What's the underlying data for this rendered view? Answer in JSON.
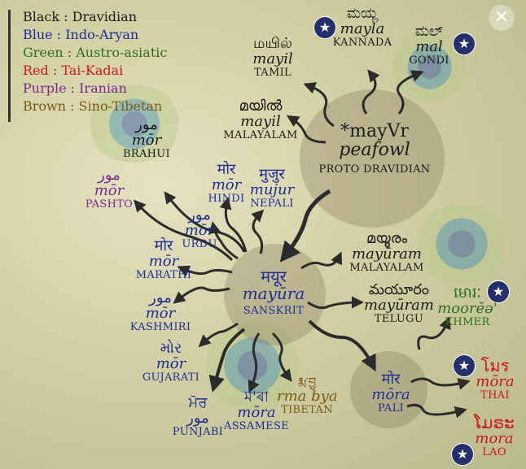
{
  "legend": [
    {
      "text": "Black : Dravidian",
      "color": "#1a1a1a"
    },
    {
      "text": "Blue : Indo-Aryan",
      "color": "#1f2e96"
    },
    {
      "text": "Green : Austro-asiatic",
      "color": "#2b6f1e"
    },
    {
      "text": "Red : Tai-Kadai",
      "color": "#d0151b"
    },
    {
      "text": "Purple : Iranian",
      "color": "#7a2a8f"
    },
    {
      "text": "Brown : Sino-Tibetan",
      "color": "#7a5a16"
    }
  ],
  "proto": {
    "form": "*mayVr",
    "gloss": "peafowl",
    "label": "PROTO DRAVIDIAN"
  },
  "nodes": [
    {
      "id": "kannada",
      "script": "ಮಯ್ಲ",
      "roman": "mayla",
      "lang": "KANNADA",
      "family": "drav"
    },
    {
      "id": "gondi",
      "script": "ಮಲ್",
      "roman": "mal",
      "lang": "GONDI",
      "family": "drav"
    },
    {
      "id": "tamil",
      "script": "மயில்",
      "roman": "mayil",
      "lang": "TAMIL",
      "family": "drav"
    },
    {
      "id": "malayalam1",
      "script": "മയിൽ",
      "roman": "mayil",
      "lang": "MALAYALAM",
      "family": "drav"
    },
    {
      "id": "brahui",
      "script": "مور",
      "roman": "mōr",
      "lang": "BRAHUI",
      "family": "drav"
    },
    {
      "id": "pashto",
      "script": "مور",
      "roman": "mōr",
      "lang": "PASHTO",
      "family": "iran"
    },
    {
      "id": "hindi",
      "script": "मोर",
      "roman": "mōr",
      "lang": "HINDI",
      "family": "indo"
    },
    {
      "id": "nepali",
      "script": "मुजुर",
      "roman": "mujur",
      "lang": "NEPALI",
      "family": "indo"
    },
    {
      "id": "urdu",
      "script": "مور",
      "roman": "mōr",
      "lang": "URDU",
      "family": "indo"
    },
    {
      "id": "marathi",
      "script": "मोर",
      "roman": "mōr",
      "lang": "MARATHI",
      "family": "indo"
    },
    {
      "id": "sanskrit",
      "script": "मयूर",
      "roman": "mayūra",
      "lang": "SANSKRIT",
      "family": "indo"
    },
    {
      "id": "malayalam2",
      "script": "മയൂരം",
      "roman": "mayūram",
      "lang": "MALAYALAM",
      "family": "drav"
    },
    {
      "id": "telugu",
      "script": "మయూరం",
      "roman": "mayūram",
      "lang": "TELUGU",
      "family": "drav"
    },
    {
      "id": "kashmiri",
      "script": "مور",
      "roman": "mōr",
      "lang": "KASHMIRI",
      "family": "indo"
    },
    {
      "id": "gujarati",
      "script": "મોર",
      "roman": "mōr",
      "lang": "GUJARATI",
      "family": "indo"
    },
    {
      "id": "khmer",
      "script": "មោរៈ",
      "roman": "moorĕə'",
      "lang": "KHMER",
      "family": "austro"
    },
    {
      "id": "pali",
      "script": "मोर",
      "roman": "mōra",
      "lang": "PALI",
      "family": "indo"
    },
    {
      "id": "thai",
      "script": "โมร",
      "roman": "mōra",
      "lang": "THAI",
      "family": "tai"
    },
    {
      "id": "tibetan",
      "script": "རྨ་བྱ",
      "roman": "rma bya",
      "lang": "TIBETAN",
      "family": "sino"
    },
    {
      "id": "assamese",
      "script": "ম'ৰা",
      "roman": "mōra",
      "lang": "ASSAMESE",
      "family": "indo"
    },
    {
      "id": "punjabi",
      "script": "ਮੋਰ",
      "roman": "مور",
      "lang": "PUNJABI",
      "family": "indo"
    },
    {
      "id": "lao",
      "script": "ໂມຣະ",
      "roman": "mora",
      "lang": "LAO",
      "family": "tai"
    }
  ],
  "icons": {
    "star": "star-icon",
    "close": "close-icon"
  }
}
